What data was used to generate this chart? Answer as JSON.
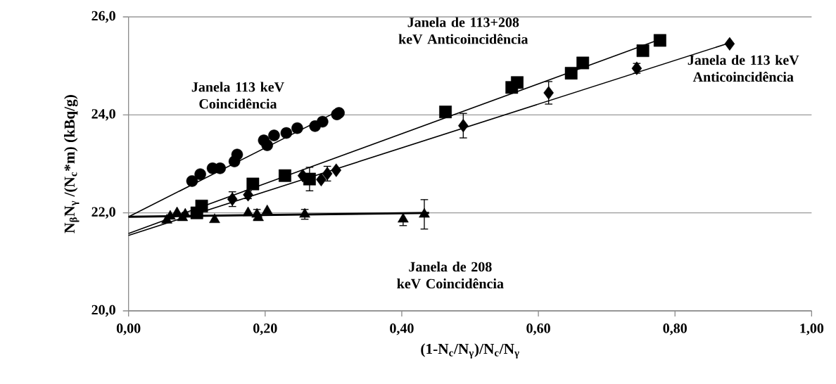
{
  "chart_data": {
    "type": "scatter",
    "xlabel": "(1-N$_{c}$/N$_{γ}$)/N$_{c}$/N$_{γ}$",
    "ylabel": "N$_{β}$N$_{γ}$ /(N$_{c}$*m) (kBq/g)",
    "xlim": [
      0,
      1
    ],
    "ylim": [
      20,
      26
    ],
    "xticks": [
      {
        "value": 0,
        "label": "0,00"
      },
      {
        "value": 0.2,
        "label": "0,20"
      },
      {
        "value": 0.4,
        "label": "0,40"
      },
      {
        "value": 0.6,
        "label": "0,60"
      },
      {
        "value": 0.8,
        "label": "0,80"
      },
      {
        "value": 1,
        "label": "1,00"
      }
    ],
    "yticks": [
      {
        "value": 20,
        "label": "20,0"
      },
      {
        "value": 22,
        "label": "22,0"
      },
      {
        "value": 24,
        "label": "24,0"
      },
      {
        "value": 26,
        "label": "26,0"
      }
    ],
    "grid": "y",
    "series": [
      {
        "name": "Janela 113 keV Coincidência",
        "marker": "circle",
        "color": "#000000",
        "x": [
          0.093,
          0.105,
          0.123,
          0.134,
          0.155,
          0.159,
          0.198,
          0.203,
          0.213,
          0.231,
          0.247,
          0.273,
          0.284,
          0.305,
          0.308
        ],
        "values": [
          22.65,
          22.79,
          22.91,
          22.91,
          23.05,
          23.19,
          23.48,
          23.38,
          23.58,
          23.63,
          23.73,
          23.77,
          23.86,
          24.01,
          24.04
        ]
      },
      {
        "name": "Janela de 113+208 keV Anticoincidência",
        "marker": "square",
        "color": "#000000",
        "x": [
          0.1,
          0.107,
          0.182,
          0.229,
          0.265,
          0.464,
          0.561,
          0.569,
          0.648,
          0.665,
          0.753,
          0.778
        ],
        "values": [
          22.0,
          22.14,
          22.59,
          22.76,
          22.69,
          24.06,
          24.56,
          24.66,
          24.85,
          25.06,
          25.31,
          25.52
        ],
        "errors": [
          null,
          0.06,
          null,
          null,
          0.24,
          null,
          null,
          null,
          null,
          null,
          null,
          null
        ]
      },
      {
        "name": "Janela de 113 keV Anticoincidência",
        "marker": "diamond",
        "color": "#000000",
        "x": [
          0.152,
          0.175,
          0.255,
          0.282,
          0.291,
          0.304,
          0.49,
          0.615,
          0.744,
          0.88
        ],
        "values": [
          22.28,
          22.37,
          22.76,
          22.68,
          22.8,
          22.87,
          23.78,
          24.45,
          24.95,
          25.45
        ],
        "errors": [
          0.15,
          0.08,
          null,
          null,
          0.15,
          null,
          0.25,
          0.23,
          0.1,
          null
        ]
      },
      {
        "name": "Janela de 208 keV Coincidência",
        "marker": "triangle",
        "color": "#000000",
        "x": [
          0.056,
          0.061,
          0.071,
          0.079,
          0.083,
          0.126,
          0.175,
          0.188,
          0.19,
          0.203,
          0.258,
          0.402,
          0.433
        ],
        "values": [
          21.85,
          21.93,
          22.0,
          21.9,
          21.97,
          21.86,
          22.0,
          21.97,
          21.9,
          22.04,
          21.97,
          21.87,
          21.97
        ],
        "errors": [
          null,
          null,
          null,
          null,
          null,
          null,
          null,
          0.1,
          null,
          null,
          0.1,
          0.13,
          0.3
        ]
      },
      {
        "type": "line",
        "color": "#000000",
        "line_style": "solid",
        "x": [
          0,
          0.31
        ],
        "values": [
          21.92,
          24.1
        ]
      },
      {
        "type": "line",
        "color": "#000000",
        "line_style": "solid",
        "x": [
          0,
          0.78
        ],
        "values": [
          21.58,
          25.55
        ]
      },
      {
        "type": "line",
        "color": "#000000",
        "line_style": "solid",
        "x": [
          0,
          0.88
        ],
        "values": [
          21.54,
          25.47
        ]
      },
      {
        "type": "line",
        "color": "#000000",
        "line_style": "solid",
        "x": [
          0,
          0.44
        ],
        "values": [
          21.92,
          22.0
        ]
      }
    ]
  }
}
